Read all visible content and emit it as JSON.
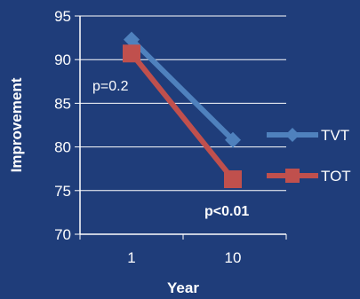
{
  "chart_data": {
    "type": "line",
    "title": "",
    "xlabel": "Year",
    "ylabel": "Improvement",
    "categories": [
      "1",
      "10"
    ],
    "ylim": [
      70,
      95
    ],
    "yticks": [
      "70",
      "75",
      "80",
      "85",
      "90",
      "95"
    ],
    "grid": true,
    "legend_position": "right",
    "series": [
      {
        "name": "TVT",
        "values": [
          92.3,
          80.8
        ],
        "color": "#4f81bd",
        "marker": "diamond"
      },
      {
        "name": "TOT",
        "values": [
          90.7,
          76.3
        ],
        "color": "#c0504d",
        "marker": "square"
      }
    ],
    "annotations": [
      {
        "text": "p=0.2",
        "weight": "normal"
      },
      {
        "text": "p<0.01",
        "weight": "bold"
      }
    ],
    "colors": {
      "background": "#1f3d7a",
      "axis": "#ffffff",
      "grid": "#ffffff"
    }
  }
}
